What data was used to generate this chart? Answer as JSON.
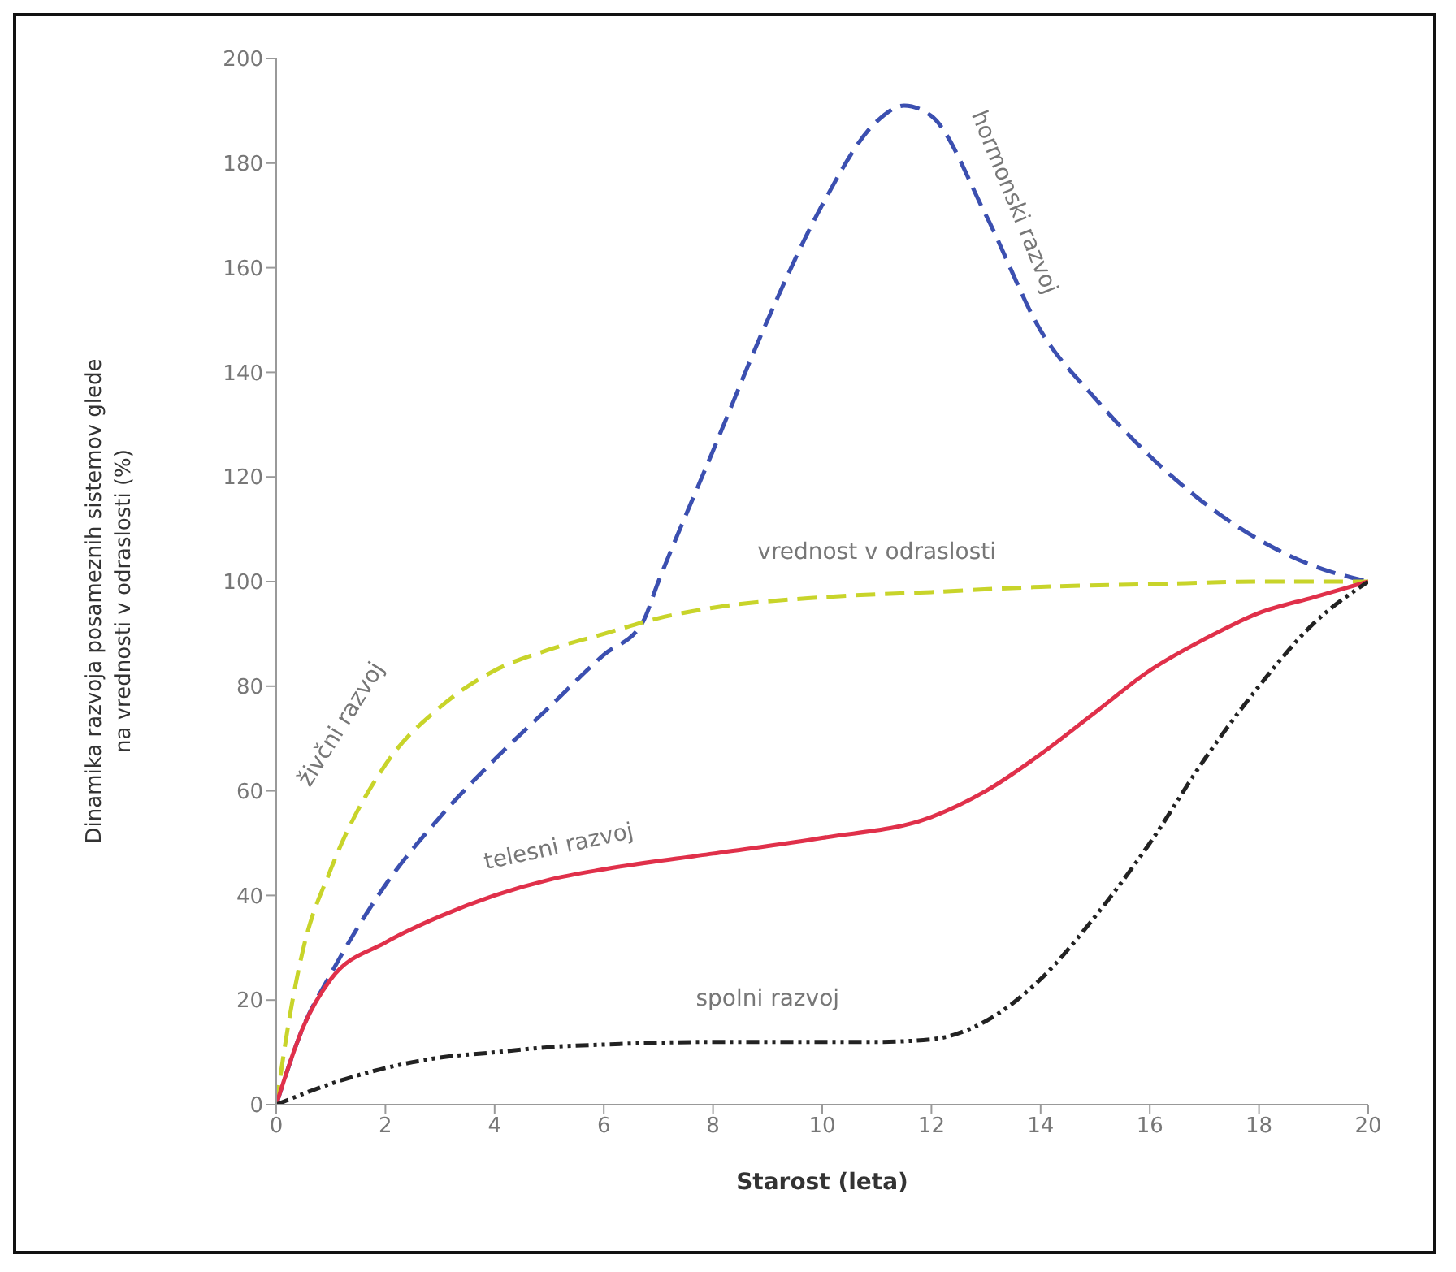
{
  "chart_data": {
    "type": "line",
    "xlabel": "Starost (leta)",
    "ylabel": "Dinamika razvoja posameznih sistemov glede na vrednosti v odraslosti (%)",
    "xlim": [
      0,
      20
    ],
    "xticks": [
      0,
      2,
      4,
      6,
      8,
      10,
      12,
      14,
      16,
      18,
      20
    ],
    "ylim": [
      0,
      200
    ],
    "yticks": [
      0,
      20,
      40,
      60,
      80,
      100,
      120,
      140,
      160,
      180,
      200
    ],
    "marker": "none",
    "annotations": [
      "vrednost v odraslosti"
    ],
    "series": [
      {
        "name": "hormonski razvoj",
        "color": "#3b4fb0",
        "line_style": "dashed",
        "x": [
          0,
          0.5,
          1,
          2,
          3,
          4,
          5,
          6,
          6.7,
          7,
          8,
          9,
          10,
          11,
          11.5,
          12,
          13,
          14,
          15,
          16,
          17,
          18,
          19,
          20
        ],
        "values": [
          0,
          15,
          25,
          42,
          55,
          66,
          76,
          86,
          92,
          100,
          125,
          150,
          172,
          188,
          191,
          189,
          170,
          148,
          135,
          124,
          115,
          108,
          103,
          100
        ]
      },
      {
        "name": "živčni razvoj",
        "color": "#c8d42a",
        "line_style": "dashed",
        "x": [
          0,
          0.3,
          0.5,
          1,
          2,
          3,
          4,
          5,
          6,
          7,
          8,
          10,
          12,
          14,
          16,
          18,
          20
        ],
        "values": [
          0,
          20,
          30,
          45,
          65,
          76,
          83,
          87,
          90,
          93,
          95,
          97,
          98,
          99,
          99.5,
          100,
          100
        ]
      },
      {
        "name": "telesni razvoj",
        "color": "#e0304a",
        "line_style": "solid",
        "x": [
          0,
          0.5,
          1,
          2,
          3,
          4,
          5,
          6,
          8,
          10,
          12,
          13,
          14,
          15,
          16,
          17,
          18,
          19,
          20
        ],
        "values": [
          0,
          15,
          24,
          31,
          36,
          40,
          43,
          45,
          48,
          51,
          55,
          60,
          67,
          75,
          83,
          89,
          94,
          97,
          100
        ]
      },
      {
        "name": "spolni razvoj",
        "color": "#222222",
        "line_style": "dotted",
        "x": [
          0,
          1,
          2,
          3,
          4,
          5,
          6,
          8,
          10,
          11,
          12,
          13,
          14,
          15,
          16,
          17,
          18,
          19,
          20
        ],
        "values": [
          0,
          4,
          7,
          9,
          10,
          11,
          11.5,
          12,
          12,
          12,
          12.5,
          16,
          24,
          36,
          50,
          66,
          80,
          92,
          100
        ]
      }
    ]
  }
}
